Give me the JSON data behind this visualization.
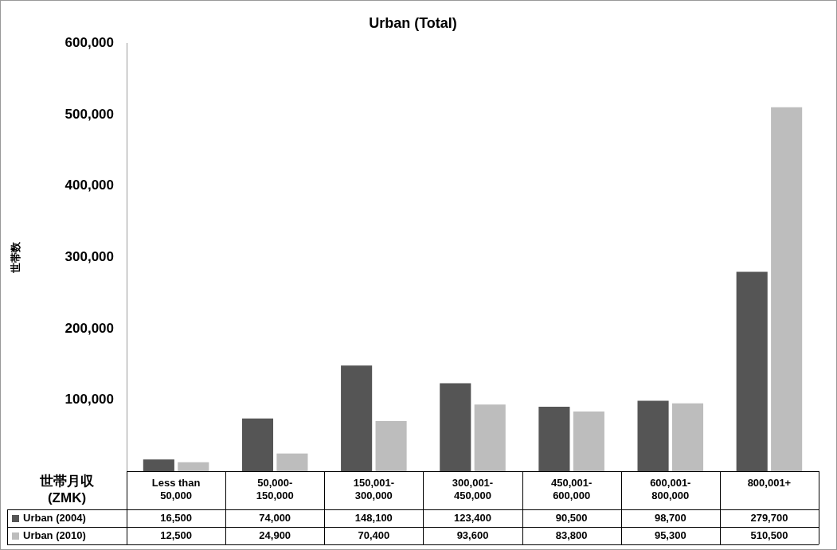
{
  "chart_data": {
    "type": "bar",
    "title": "Urban (Total)",
    "ylabel": "世帯数",
    "xlabel": "世帯月収 (ZMK)",
    "categories": [
      "Less than 50,000",
      "50,000-150,000",
      "150,001-300,000",
      "300,001-450,000",
      "450,001-600,000",
      "600,001-800,000",
      "800,001+"
    ],
    "series": [
      {
        "name": "Urban (2004)",
        "color": "#555555",
        "values": [
          16500,
          74000,
          148100,
          123400,
          90500,
          98700,
          279700
        ],
        "value_labels": [
          "16,500",
          "74,000",
          "148,100",
          "123,400",
          "90,500",
          "98,700",
          "279,700"
        ]
      },
      {
        "name": "Urban (2010)",
        "color": "#bdbdbd",
        "values": [
          12500,
          24900,
          70400,
          93600,
          83800,
          95300,
          510500
        ],
        "value_labels": [
          "12,500",
          "24,900",
          "70,400",
          "93,600",
          "83,800",
          "95,300",
          "510,500"
        ]
      }
    ],
    "ylim": [
      0,
      600000
    ],
    "yticks": [
      {
        "value": 100000,
        "label": "100,000"
      },
      {
        "value": 200000,
        "label": "200,000"
      },
      {
        "value": 300000,
        "label": "300,000"
      },
      {
        "value": 400000,
        "label": "400,000"
      },
      {
        "value": 500000,
        "label": "500,000"
      },
      {
        "value": 600000,
        "label": "600,000"
      }
    ],
    "grid": false,
    "legend": "bottom"
  }
}
